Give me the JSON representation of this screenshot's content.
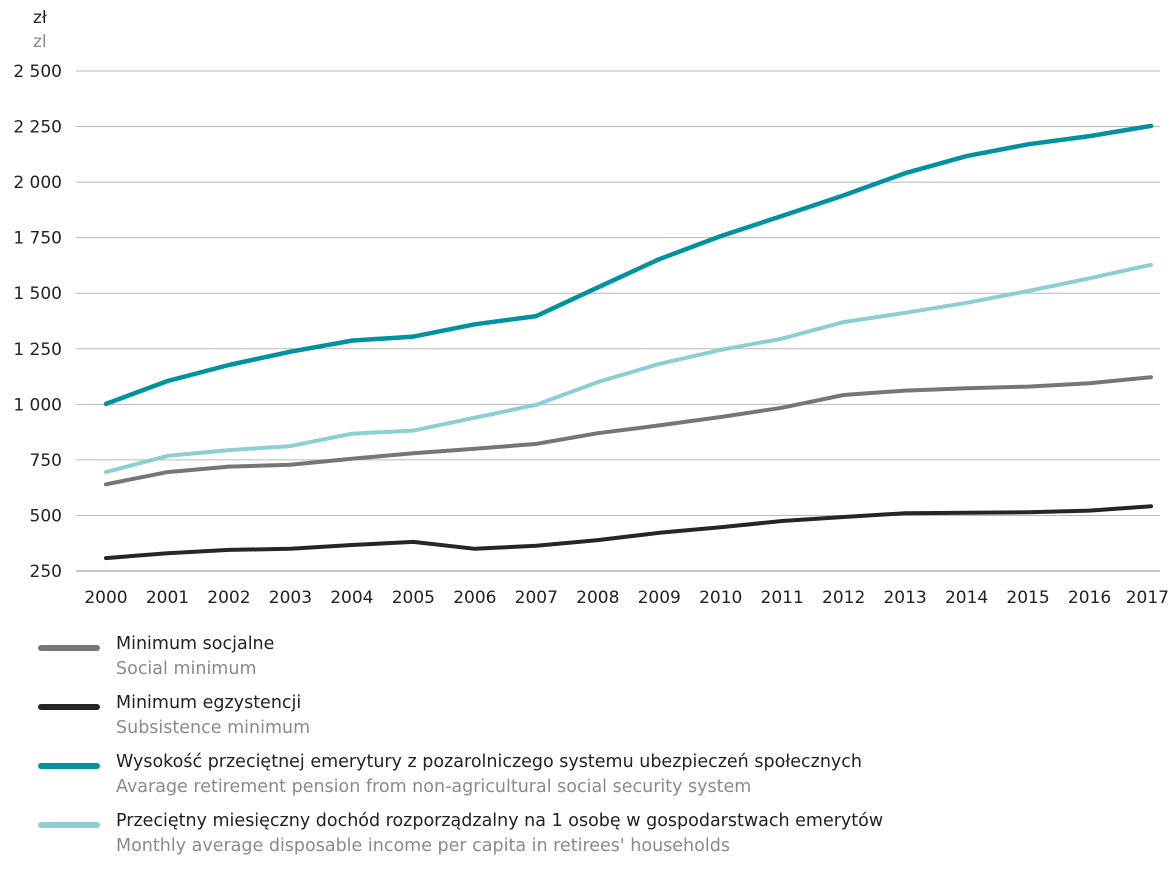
{
  "units": {
    "pl": "zł",
    "en": "zl"
  },
  "chart_data": {
    "type": "line",
    "x": [
      "2000",
      "2001",
      "2002",
      "2003",
      "2004",
      "2005",
      "2006",
      "2007",
      "2008",
      "2009",
      "2010",
      "2011",
      "2012",
      "2013",
      "2014",
      "2015",
      "2016",
      "2017"
    ],
    "y_ticks": [
      "250",
      "500",
      "750",
      "1 000",
      "1 250",
      "1 500",
      "1 750",
      "2 000",
      "2 250",
      "2 500"
    ],
    "ylim": [
      250,
      2500
    ],
    "grid": true,
    "legend_position": "bottom",
    "series": [
      {
        "name": "Minimum socjalne",
        "name_en": "Social minimum",
        "color": "#767676",
        "values": [
          640,
          695,
          720,
          728,
          755,
          780,
          800,
          822,
          870,
          905,
          943,
          985,
          1042,
          1062,
          1072,
          1080,
          1095,
          1122
        ]
      },
      {
        "name": "Minimum egzystencji",
        "name_en": "Subsistence minimum",
        "color": "#262626",
        "values": [
          308,
          330,
          345,
          350,
          367,
          381,
          350,
          364,
          389,
          422,
          447,
          475,
          493,
          510,
          512,
          514,
          522,
          541
        ]
      },
      {
        "name": "Wysokość przeciętnej emerytury z pozarolniczego systemu ubezpieczeń społecznych",
        "name_en": "Avarage retirement pension from non-agricultural social security system",
        "color": "#00929f",
        "values": [
          1002,
          1105,
          1177,
          1237,
          1287,
          1305,
          1360,
          1397,
          1526,
          1653,
          1757,
          1848,
          1940,
          2040,
          2117,
          2170,
          2207,
          2253
        ]
      },
      {
        "name": "Przeciętny miesięczny dochód rozporządzalny na 1 osobę w gospodarstwach emerytów",
        "name_en": "Monthly average disposable income per capita in retirees' households",
        "color": "#8ccfd2",
        "values": [
          695,
          768,
          794,
          812,
          868,
          882,
          940,
          998,
          1100,
          1182,
          1245,
          1296,
          1370,
          1412,
          1457,
          1510,
          1567,
          1628
        ]
      }
    ]
  }
}
